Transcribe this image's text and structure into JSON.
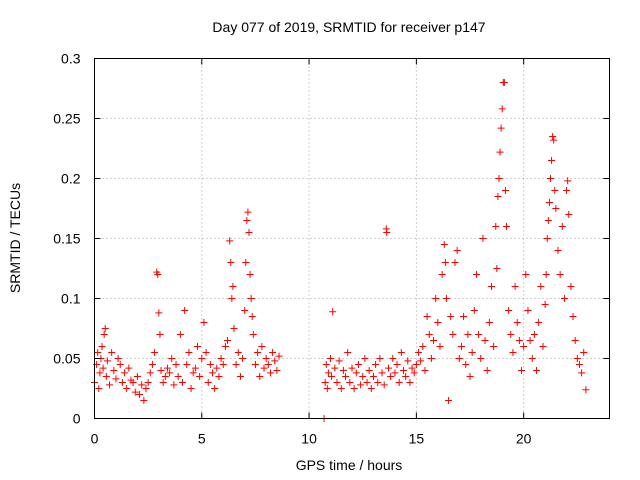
{
  "chart_data": {
    "type": "scatter",
    "title": "Day 077 of 2019, SRMTID for receiver p147",
    "xlabel": "GPS time / hours",
    "ylabel": "SRMTID / TECUs",
    "xlim": [
      0,
      24
    ],
    "ylim": [
      0,
      0.3
    ],
    "xticks": [
      0,
      5,
      10,
      15,
      20
    ],
    "xtick_labels": [
      "0",
      "5",
      "10",
      "15",
      "20"
    ],
    "yticks": [
      0,
      0.05,
      0.1,
      0.15,
      0.2,
      0.25,
      0.3
    ],
    "ytick_labels": [
      "0",
      "0.05",
      "0.1",
      "0.15",
      "0.2",
      "0.25",
      "0.3"
    ],
    "grid": true,
    "marker": "+",
    "series": [
      {
        "name": "SRMTID",
        "color": "#ff0000",
        "points": [
          [
            0.0,
            0.03
          ],
          [
            0.1,
            0.045
          ],
          [
            0.15,
            0.055
          ],
          [
            0.2,
            0.025
          ],
          [
            0.25,
            0.038
          ],
          [
            0.3,
            0.05
          ],
          [
            0.35,
            0.06
          ],
          [
            0.4,
            0.042
          ],
          [
            0.45,
            0.07
          ],
          [
            0.5,
            0.075
          ],
          [
            0.55,
            0.035
          ],
          [
            0.6,
            0.048
          ],
          [
            0.7,
            0.028
          ],
          [
            0.8,
            0.055
          ],
          [
            0.9,
            0.04
          ],
          [
            1.0,
            0.033
          ],
          [
            1.1,
            0.05
          ],
          [
            1.2,
            0.045
          ],
          [
            1.3,
            0.03
          ],
          [
            1.4,
            0.038
          ],
          [
            1.5,
            0.025
          ],
          [
            1.6,
            0.042
          ],
          [
            1.7,
            0.032
          ],
          [
            1.8,
            0.03
          ],
          [
            1.9,
            0.022
          ],
          [
            2.0,
            0.035
          ],
          [
            2.1,
            0.02
          ],
          [
            2.2,
            0.028
          ],
          [
            2.3,
            0.015
          ],
          [
            2.4,
            0.025
          ],
          [
            2.5,
            0.03
          ],
          [
            2.6,
            0.038
          ],
          [
            2.7,
            0.045
          ],
          [
            2.8,
            0.055
          ],
          [
            2.9,
            0.122
          ],
          [
            2.95,
            0.12
          ],
          [
            3.0,
            0.088
          ],
          [
            3.05,
            0.07
          ],
          [
            3.1,
            0.04
          ],
          [
            3.2,
            0.03
          ],
          [
            3.3,
            0.035
          ],
          [
            3.4,
            0.042
          ],
          [
            3.5,
            0.038
          ],
          [
            3.6,
            0.05
          ],
          [
            3.7,
            0.028
          ],
          [
            3.8,
            0.045
          ],
          [
            3.9,
            0.035
          ],
          [
            4.0,
            0.07
          ],
          [
            4.1,
            0.03
          ],
          [
            4.2,
            0.09
          ],
          [
            4.3,
            0.045
          ],
          [
            4.4,
            0.055
          ],
          [
            4.5,
            0.025
          ],
          [
            4.6,
            0.038
          ],
          [
            4.7,
            0.042
          ],
          [
            4.8,
            0.06
          ],
          [
            4.9,
            0.035
          ],
          [
            5.0,
            0.05
          ],
          [
            5.1,
            0.08
          ],
          [
            5.2,
            0.055
          ],
          [
            5.3,
            0.03
          ],
          [
            5.4,
            0.045
          ],
          [
            5.5,
            0.038
          ],
          [
            5.6,
            0.025
          ],
          [
            5.7,
            0.042
          ],
          [
            5.8,
            0.035
          ],
          [
            5.9,
            0.05
          ],
          [
            6.0,
            0.045
          ],
          [
            6.1,
            0.06
          ],
          [
            6.2,
            0.065
          ],
          [
            6.3,
            0.148
          ],
          [
            6.35,
            0.13
          ],
          [
            6.4,
            0.1
          ],
          [
            6.45,
            0.11
          ],
          [
            6.5,
            0.075
          ],
          [
            6.6,
            0.045
          ],
          [
            6.7,
            0.055
          ],
          [
            6.8,
            0.035
          ],
          [
            6.9,
            0.05
          ],
          [
            7.0,
            0.09
          ],
          [
            7.05,
            0.13
          ],
          [
            7.1,
            0.165
          ],
          [
            7.15,
            0.172
          ],
          [
            7.2,
            0.155
          ],
          [
            7.25,
            0.12
          ],
          [
            7.3,
            0.1
          ],
          [
            7.35,
            0.085
          ],
          [
            7.4,
            0.07
          ],
          [
            7.5,
            0.045
          ],
          [
            7.6,
            0.055
          ],
          [
            7.7,
            0.035
          ],
          [
            7.8,
            0.06
          ],
          [
            7.9,
            0.042
          ],
          [
            8.0,
            0.05
          ],
          [
            8.1,
            0.045
          ],
          [
            8.2,
            0.038
          ],
          [
            8.3,
            0.055
          ],
          [
            8.4,
            0.048
          ],
          [
            8.5,
            0.04
          ],
          [
            8.6,
            0.052
          ],
          [
            10.7,
            0.0
          ],
          [
            10.75,
            0.03
          ],
          [
            10.8,
            0.045
          ],
          [
            10.85,
            0.025
          ],
          [
            10.9,
            0.038
          ],
          [
            11.0,
            0.05
          ],
          [
            11.05,
            0.035
          ],
          [
            11.1,
            0.089
          ],
          [
            11.2,
            0.042
          ],
          [
            11.3,
            0.03
          ],
          [
            11.4,
            0.048
          ],
          [
            11.5,
            0.025
          ],
          [
            11.6,
            0.04
          ],
          [
            11.7,
            0.035
          ],
          [
            11.8,
            0.055
          ],
          [
            11.9,
            0.03
          ],
          [
            12.0,
            0.042
          ],
          [
            12.1,
            0.025
          ],
          [
            12.2,
            0.038
          ],
          [
            12.3,
            0.045
          ],
          [
            12.4,
            0.028
          ],
          [
            12.5,
            0.035
          ],
          [
            12.6,
            0.05
          ],
          [
            12.7,
            0.03
          ],
          [
            12.8,
            0.04
          ],
          [
            12.9,
            0.025
          ],
          [
            13.0,
            0.035
          ],
          [
            13.1,
            0.045
          ],
          [
            13.2,
            0.03
          ],
          [
            13.3,
            0.05
          ],
          [
            13.4,
            0.038
          ],
          [
            13.5,
            0.028
          ],
          [
            13.6,
            0.158
          ],
          [
            13.62,
            0.155
          ],
          [
            13.7,
            0.042
          ],
          [
            13.8,
            0.035
          ],
          [
            13.9,
            0.05
          ],
          [
            14.0,
            0.038
          ],
          [
            14.1,
            0.045
          ],
          [
            14.2,
            0.03
          ],
          [
            14.3,
            0.055
          ],
          [
            14.4,
            0.04
          ],
          [
            14.5,
            0.035
          ],
          [
            14.6,
            0.048
          ],
          [
            14.7,
            0.03
          ],
          [
            14.8,
            0.042
          ],
          [
            14.9,
            0.038
          ],
          [
            15.0,
            0.045
          ],
          [
            15.1,
            0.055
          ],
          [
            15.2,
            0.048
          ],
          [
            15.3,
            0.06
          ],
          [
            15.4,
            0.04
          ],
          [
            15.5,
            0.085
          ],
          [
            15.6,
            0.07
          ],
          [
            15.7,
            0.05
          ],
          [
            15.8,
            0.065
          ],
          [
            15.9,
            0.1
          ],
          [
            16.0,
            0.08
          ],
          [
            16.1,
            0.06
          ],
          [
            16.2,
            0.12
          ],
          [
            16.3,
            0.145
          ],
          [
            16.35,
            0.13
          ],
          [
            16.4,
            0.1
          ],
          [
            16.5,
            0.015
          ],
          [
            16.6,
            0.085
          ],
          [
            16.7,
            0.07
          ],
          [
            16.8,
            0.13
          ],
          [
            16.9,
            0.14
          ],
          [
            17.0,
            0.05
          ],
          [
            17.1,
            0.06
          ],
          [
            17.2,
            0.085
          ],
          [
            17.3,
            0.045
          ],
          [
            17.4,
            0.07
          ],
          [
            17.5,
            0.035
          ],
          [
            17.6,
            0.055
          ],
          [
            17.7,
            0.09
          ],
          [
            17.8,
            0.12
          ],
          [
            17.9,
            0.07
          ],
          [
            18.0,
            0.05
          ],
          [
            18.1,
            0.15
          ],
          [
            18.2,
            0.065
          ],
          [
            18.3,
            0.04
          ],
          [
            18.4,
            0.08
          ],
          [
            18.5,
            0.11
          ],
          [
            18.6,
            0.06
          ],
          [
            18.7,
            0.16
          ],
          [
            18.75,
            0.125
          ],
          [
            18.8,
            0.185
          ],
          [
            18.85,
            0.2
          ],
          [
            18.9,
            0.222
          ],
          [
            18.95,
            0.242
          ],
          [
            19.0,
            0.258
          ],
          [
            19.05,
            0.28
          ],
          [
            19.1,
            0.28
          ],
          [
            19.15,
            0.19
          ],
          [
            19.2,
            0.16
          ],
          [
            19.3,
            0.09
          ],
          [
            19.4,
            0.07
          ],
          [
            19.5,
            0.055
          ],
          [
            19.6,
            0.11
          ],
          [
            19.7,
            0.08
          ],
          [
            19.8,
            0.065
          ],
          [
            19.9,
            0.04
          ],
          [
            20.0,
            0.06
          ],
          [
            20.1,
            0.12
          ],
          [
            20.2,
            0.09
          ],
          [
            20.3,
            0.065
          ],
          [
            20.4,
            0.05
          ],
          [
            20.5,
            0.07
          ],
          [
            20.6,
            0.04
          ],
          [
            20.7,
            0.08
          ],
          [
            20.8,
            0.11
          ],
          [
            20.9,
            0.06
          ],
          [
            21.0,
            0.095
          ],
          [
            21.05,
            0.12
          ],
          [
            21.1,
            0.15
          ],
          [
            21.15,
            0.165
          ],
          [
            21.2,
            0.18
          ],
          [
            21.25,
            0.2
          ],
          [
            21.3,
            0.215
          ],
          [
            21.35,
            0.235
          ],
          [
            21.4,
            0.232
          ],
          [
            21.45,
            0.19
          ],
          [
            21.5,
            0.175
          ],
          [
            21.6,
            0.14
          ],
          [
            21.7,
            0.12
          ],
          [
            21.8,
            0.16
          ],
          [
            21.9,
            0.1
          ],
          [
            22.0,
            0.19
          ],
          [
            22.05,
            0.198
          ],
          [
            22.1,
            0.17
          ],
          [
            22.2,
            0.11
          ],
          [
            22.3,
            0.085
          ],
          [
            22.4,
            0.065
          ],
          [
            22.5,
            0.05
          ],
          [
            22.6,
            0.045
          ],
          [
            22.7,
            0.038
          ],
          [
            22.8,
            0.055
          ],
          [
            22.9,
            0.024
          ]
        ]
      }
    ]
  }
}
